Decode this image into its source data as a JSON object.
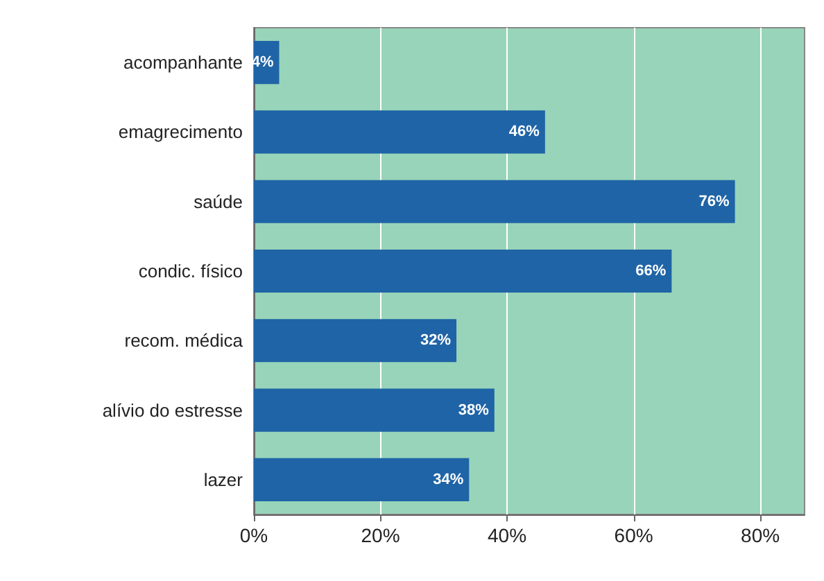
{
  "chart_data": {
    "type": "bar",
    "orientation": "horizontal",
    "categories": [
      "acompanhante",
      "emagrecimento",
      "saúde",
      "condic. físico",
      "recom. médica",
      "alívio do estresse",
      "lazer"
    ],
    "values": [
      4,
      46,
      76,
      66,
      32,
      38,
      34
    ],
    "value_labels": [
      "4%",
      "46%",
      "76%",
      "66%",
      "32%",
      "38%",
      "34%"
    ],
    "color": "#1f64a6",
    "xlim": [
      0,
      87
    ],
    "xticks": [
      {
        "value": 0,
        "label": "0%"
      },
      {
        "value": 20,
        "label": "20%"
      },
      {
        "value": 40,
        "label": "40%"
      },
      {
        "value": 60,
        "label": "60%"
      },
      {
        "value": 80,
        "label": "80%"
      }
    ],
    "grid": "x"
  }
}
